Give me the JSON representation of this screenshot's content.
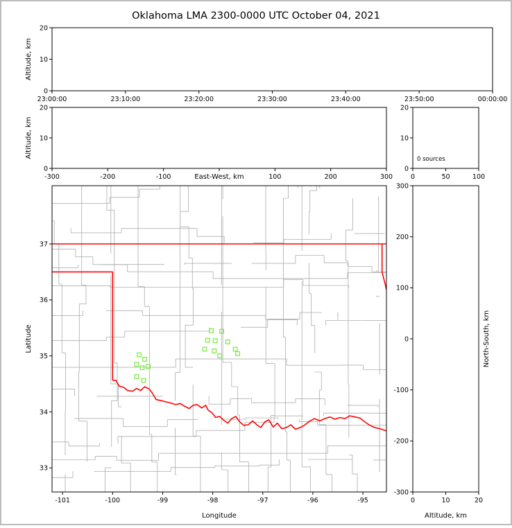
{
  "title": "Oklahoma LMA 2300-0000 UTC October 04, 2021",
  "colors": {
    "figure_border": "#bcbcbc",
    "axis": "#000000",
    "county_line": "#b0b0b0",
    "state_border": "#ff0000",
    "station_marker": "#74e93c",
    "background": "#ffffff"
  },
  "chart_data": [
    {
      "id": "time_height",
      "type": "scatter",
      "xlabel": "",
      "ylabel": "Altitude, km",
      "xlim": [
        0,
        3600
      ],
      "ylim": [
        0,
        20
      ],
      "xtick_vals": [
        0,
        600,
        1200,
        1800,
        2400,
        3000,
        3600
      ],
      "xtick_labels": [
        "23:00:00",
        "23:10:00",
        "23:20:00",
        "23:30:00",
        "23:40:00",
        "23:50:00",
        "00:00:00"
      ],
      "ytick_vals": [
        0,
        10,
        20
      ],
      "ytick_labels": [
        "0",
        "10",
        "20"
      ],
      "points": []
    },
    {
      "id": "ew_height",
      "type": "scatter",
      "xlabel": "East-West, km",
      "xlabel_inline": true,
      "ylabel": "Altitude, km",
      "xlim": [
        -300,
        300
      ],
      "ylim": [
        0,
        20
      ],
      "xtick_vals": [
        -300,
        -200,
        -100,
        0,
        100,
        200,
        300
      ],
      "xtick_labels": [
        "-300",
        "-200",
        "-100",
        "",
        "100",
        "200",
        "300"
      ],
      "ytick_vals": [
        0,
        10,
        20
      ],
      "ytick_labels": [
        "0",
        "10",
        "20"
      ],
      "points": []
    },
    {
      "id": "alt_histogram",
      "type": "line",
      "annotation": "0 sources",
      "xlim": [
        0,
        100
      ],
      "ylim": [
        0,
        20
      ],
      "xtick_vals": [
        0,
        50,
        100
      ],
      "xtick_labels": [
        "0",
        "50",
        "100"
      ],
      "ytick_vals": [
        0,
        10,
        20
      ],
      "ytick_labels": [
        "0",
        "10",
        "20"
      ],
      "points": []
    },
    {
      "id": "plan_map",
      "type": "scatter",
      "xlabel": "Longitude",
      "ylabel": "Latitude",
      "xlim": [
        -101.21,
        -94.53
      ],
      "ylim": [
        32.57,
        38.04
      ],
      "xtick_vals": [
        -101,
        -100,
        -99,
        -98,
        -97,
        -96,
        -95
      ],
      "xtick_labels": [
        "-101",
        "-100",
        "-99",
        "-98",
        "-97",
        "-96",
        "-95"
      ],
      "ytick_vals": [
        33,
        34,
        35,
        36,
        37
      ],
      "ytick_labels": [
        "33",
        "34",
        "35",
        "36",
        "37"
      ],
      "stations": [
        [
          -98.03,
          35.45
        ],
        [
          -97.82,
          35.44
        ],
        [
          -98.1,
          35.28
        ],
        [
          -97.95,
          35.27
        ],
        [
          -97.7,
          35.25
        ],
        [
          -98.16,
          35.12
        ],
        [
          -97.97,
          35.09
        ],
        [
          -97.86,
          35.0
        ],
        [
          -97.55,
          35.12
        ],
        [
          -97.5,
          35.04
        ],
        [
          -99.47,
          35.02
        ],
        [
          -99.36,
          34.94
        ],
        [
          -99.52,
          34.85
        ],
        [
          -99.41,
          34.79
        ],
        [
          -99.29,
          34.81
        ],
        [
          -99.52,
          34.63
        ],
        [
          -99.38,
          34.56
        ]
      ],
      "state_border": [
        {
          "name": "kansas-border",
          "points": [
            [
              -101.21,
              37.0
            ],
            [
              -94.53,
              37.0
            ]
          ]
        },
        {
          "name": "panhandle-texas-border",
          "points": [
            [
              -101.21,
              36.5
            ],
            [
              -100.0,
              36.5
            ],
            [
              -100.0,
              34.565
            ]
          ]
        },
        {
          "name": "missouri-arkansas-border",
          "points": [
            [
              -94.617,
              37.0
            ],
            [
              -94.617,
              36.5
            ],
            [
              -94.555,
              36.28
            ],
            [
              -94.53,
              36.18
            ]
          ]
        },
        {
          "name": "red-river-border",
          "points": [
            [
              -100.0,
              34.565
            ],
            [
              -99.93,
              34.56
            ],
            [
              -99.87,
              34.46
            ],
            [
              -99.78,
              34.44
            ],
            [
              -99.7,
              34.38
            ],
            [
              -99.6,
              34.37
            ],
            [
              -99.52,
              34.42
            ],
            [
              -99.44,
              34.38
            ],
            [
              -99.36,
              34.45
            ],
            [
              -99.27,
              34.41
            ],
            [
              -99.21,
              34.34
            ],
            [
              -99.13,
              34.22
            ],
            [
              -99.02,
              34.2
            ],
            [
              -98.94,
              34.18
            ],
            [
              -98.85,
              34.16
            ],
            [
              -98.74,
              34.13
            ],
            [
              -98.65,
              34.15
            ],
            [
              -98.56,
              34.1
            ],
            [
              -98.47,
              34.06
            ],
            [
              -98.39,
              34.12
            ],
            [
              -98.31,
              34.13
            ],
            [
              -98.22,
              34.07
            ],
            [
              -98.14,
              34.12
            ],
            [
              -98.09,
              34.03
            ],
            [
              -98.02,
              33.99
            ],
            [
              -97.94,
              33.9
            ],
            [
              -97.86,
              33.92
            ],
            [
              -97.78,
              33.85
            ],
            [
              -97.7,
              33.8
            ],
            [
              -97.62,
              33.88
            ],
            [
              -97.54,
              33.92
            ],
            [
              -97.46,
              33.82
            ],
            [
              -97.38,
              33.76
            ],
            [
              -97.29,
              33.77
            ],
            [
              -97.2,
              33.84
            ],
            [
              -97.12,
              33.77
            ],
            [
              -97.04,
              33.72
            ],
            [
              -96.96,
              33.82
            ],
            [
              -96.88,
              33.86
            ],
            [
              -96.79,
              33.73
            ],
            [
              -96.71,
              33.8
            ],
            [
              -96.62,
              33.7
            ],
            [
              -96.53,
              33.72
            ],
            [
              -96.44,
              33.77
            ],
            [
              -96.35,
              33.69
            ],
            [
              -96.26,
              33.72
            ],
            [
              -96.17,
              33.76
            ],
            [
              -96.07,
              33.83
            ],
            [
              -95.97,
              33.88
            ],
            [
              -95.86,
              33.84
            ],
            [
              -95.76,
              33.88
            ],
            [
              -95.66,
              33.91
            ],
            [
              -95.56,
              33.87
            ],
            [
              -95.46,
              33.9
            ],
            [
              -95.36,
              33.88
            ],
            [
              -95.26,
              33.93
            ],
            [
              -95.16,
              33.91
            ],
            [
              -95.06,
              33.89
            ],
            [
              -94.96,
              33.82
            ],
            [
              -94.86,
              33.76
            ],
            [
              -94.76,
              33.72
            ],
            [
              -94.66,
              33.7
            ],
            [
              -94.53,
              33.66
            ]
          ]
        }
      ],
      "county_grid": {
        "seed": 12,
        "lon_step": 0.46,
        "lat_step": 0.42,
        "jitter": 0.05,
        "skip": 0.12
      }
    },
    {
      "id": "ns_alt",
      "type": "scatter",
      "xlabel": "Altitude, km",
      "ylabel": "North-South, km",
      "ylabel_side": "right",
      "xlim": [
        0,
        20
      ],
      "ylim": [
        -300,
        300
      ],
      "xtick_vals": [
        0,
        10,
        20
      ],
      "xtick_labels": [
        "0",
        "10",
        "20"
      ],
      "ytick_vals": [
        -300,
        -200,
        -100,
        0,
        100,
        200,
        300
      ],
      "ytick_labels": [
        "-300",
        "-200",
        "-100",
        "0",
        "100",
        "200",
        "300"
      ],
      "points": []
    }
  ]
}
